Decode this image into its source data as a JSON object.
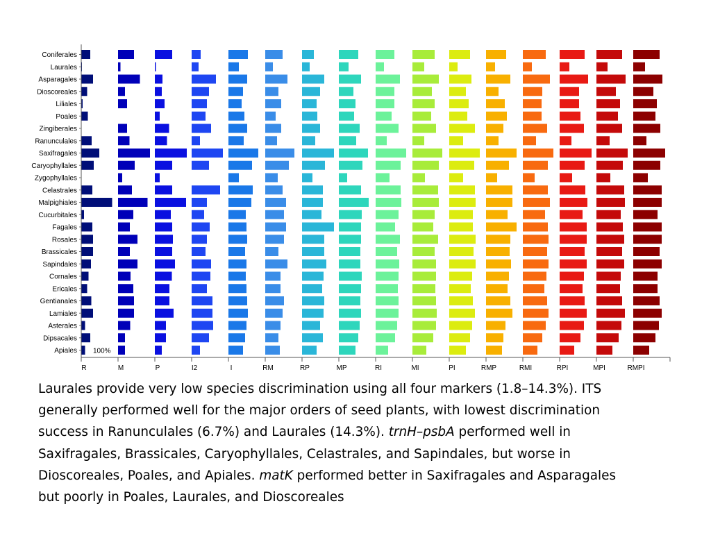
{
  "chart_data": {
    "type": "bar",
    "orientation": "horizontal",
    "grid": false,
    "legend": "none",
    "categories": [
      "Coniferales",
      "Laurales",
      "Asparagales",
      "Dioscoreales",
      "Liliales",
      "Poales",
      "Zingiberales",
      "Ranunculales",
      "Saxifragales",
      "Caryophyllales",
      "Zygophyllales",
      "Celastrales",
      "Malpighiales",
      "Cucurbitales",
      "Fagales",
      "Rosales",
      "Brassicales",
      "Sapindales",
      "Cornales",
      "Ericales",
      "Gentianales",
      "Lamiales",
      "Asterales",
      "Dipsacales",
      "Apiales"
    ],
    "panel_max": 100,
    "reference_label": "100%",
    "series": [
      {
        "name": "R",
        "color": "#000e78",
        "values": [
          26,
          2,
          34,
          17,
          4,
          19,
          0,
          30,
          52,
          36,
          0,
          32,
          89,
          8,
          32,
          34,
          34,
          28,
          21,
          17,
          29,
          34,
          11,
          26,
          11
        ]
      },
      {
        "name": "M",
        "color": "#0000b8",
        "values": [
          46,
          7,
          63,
          20,
          26,
          0,
          26,
          33,
          92,
          48,
          12,
          40,
          85,
          44,
          34,
          56,
          34,
          56,
          36,
          44,
          46,
          46,
          35,
          20,
          20
        ]
      },
      {
        "name": "P",
        "color": "#0a10e0",
        "values": [
          50,
          3,
          22,
          20,
          28,
          14,
          41,
          35,
          92,
          50,
          14,
          50,
          90,
          46,
          50,
          52,
          50,
          58,
          49,
          42,
          42,
          54,
          32,
          32,
          20
        ]
      },
      {
        "name": "I2",
        "color": "#1e46f2",
        "values": [
          26,
          20,
          70,
          50,
          44,
          40,
          56,
          24,
          90,
          50,
          0,
          82,
          44,
          36,
          52,
          44,
          40,
          56,
          54,
          44,
          60,
          60,
          62,
          50,
          24
        ]
      },
      {
        "name": "I",
        "color": "#1a78e8",
        "values": [
          56,
          30,
          54,
          42,
          38,
          46,
          54,
          44,
          86,
          68,
          30,
          70,
          66,
          50,
          52,
          54,
          48,
          52,
          50,
          52,
          54,
          56,
          52,
          48,
          42
        ]
      },
      {
        "name": "RM",
        "color": "#3a8de8",
        "values": [
          50,
          22,
          64,
          38,
          46,
          30,
          46,
          34,
          84,
          68,
          36,
          50,
          60,
          54,
          60,
          54,
          38,
          64,
          44,
          44,
          54,
          50,
          44,
          38,
          42
        ]
      },
      {
        "name": "RP",
        "color": "#2ab6d8",
        "values": [
          34,
          22,
          64,
          52,
          42,
          44,
          52,
          38,
          92,
          66,
          30,
          60,
          60,
          56,
          92,
          64,
          64,
          70,
          62,
          58,
          64,
          62,
          52,
          60,
          42
        ]
      },
      {
        "name": "MP",
        "color": "#2ed6bc",
        "values": [
          56,
          28,
          64,
          42,
          48,
          44,
          60,
          50,
          84,
          68,
          24,
          64,
          86,
          66,
          64,
          64,
          62,
          62,
          66,
          64,
          62,
          64,
          60,
          56,
          48
        ]
      },
      {
        "name": "RI",
        "color": "#6cf29a",
        "values": [
          54,
          24,
          70,
          54,
          54,
          46,
          66,
          32,
          88,
          72,
          40,
          72,
          74,
          66,
          56,
          70,
          62,
          68,
          66,
          64,
          66,
          66,
          62,
          56,
          36
        ]
      },
      {
        "name": "MI",
        "color": "#a8ec3a",
        "values": [
          64,
          34,
          76,
          56,
          64,
          54,
          68,
          34,
          86,
          76,
          36,
          74,
          76,
          64,
          60,
          74,
          64,
          68,
          68,
          66,
          68,
          70,
          68,
          60,
          40
        ]
      },
      {
        "name": "PI",
        "color": "#dcec10",
        "values": [
          60,
          24,
          64,
          48,
          56,
          52,
          74,
          40,
          88,
          72,
          40,
          74,
          76,
          68,
          68,
          76,
          70,
          76,
          66,
          62,
          68,
          74,
          66,
          60,
          48
        ]
      },
      {
        "name": "RMP",
        "color": "#f8b000",
        "values": [
          58,
          26,
          70,
          36,
          54,
          60,
          50,
          36,
          88,
          66,
          32,
          76,
          76,
          62,
          88,
          70,
          68,
          72,
          66,
          62,
          70,
          76,
          56,
          50,
          46
        ]
      },
      {
        "name": "RMI",
        "color": "#f86a10",
        "values": [
          66,
          26,
          78,
          56,
          54,
          54,
          70,
          38,
          88,
          72,
          34,
          72,
          78,
          64,
          72,
          74,
          70,
          74,
          68,
          62,
          70,
          74,
          66,
          56,
          42
        ]
      },
      {
        "name": "RPI",
        "color": "#e81a14",
        "values": [
          72,
          28,
          82,
          56,
          56,
          60,
          70,
          34,
          92,
          72,
          36,
          74,
          80,
          66,
          78,
          78,
          72,
          78,
          70,
          66,
          72,
          78,
          70,
          60,
          42
        ]
      },
      {
        "name": "MPI",
        "color": "#c40a0a",
        "values": [
          74,
          32,
          84,
          56,
          68,
          62,
          74,
          38,
          90,
          76,
          40,
          80,
          82,
          70,
          76,
          80,
          74,
          80,
          70,
          68,
          74,
          82,
          72,
          64,
          46
        ]
      },
      {
        "name": "RMPI",
        "color": "#8c0000",
        "values": [
          76,
          34,
          84,
          58,
          68,
          64,
          78,
          38,
          92,
          78,
          42,
          82,
          82,
          70,
          82,
          82,
          76,
          82,
          70,
          70,
          76,
          82,
          74,
          64,
          46
        ]
      }
    ]
  },
  "caption": {
    "line1": "Laurales provide very low species discrimination using all four markers (1.8–14.3%). ITS",
    "line2": "generally performed well for the major orders of seed plants, with lowest  discrimination",
    "line3_a": "success in Ranunculales (6.7%) and Laurales (14.3%). ",
    "line3_i1": "trnH",
    "line3_dash": "–",
    "line3_i2": "psbA",
    "line3_b": " performed well in",
    "line4": "Saxifragales, Brassicales, Caryophyllales, Celastrales, and Sapindales, but worse in",
    "line5_a": "Dioscoreales, Poales, and Apiales. ",
    "line5_i": "matK",
    "line5_b": " performed better in Saxifragales and Asparagales",
    "line6": "but poorly in Poales, Laurales, and Dioscoreales"
  }
}
